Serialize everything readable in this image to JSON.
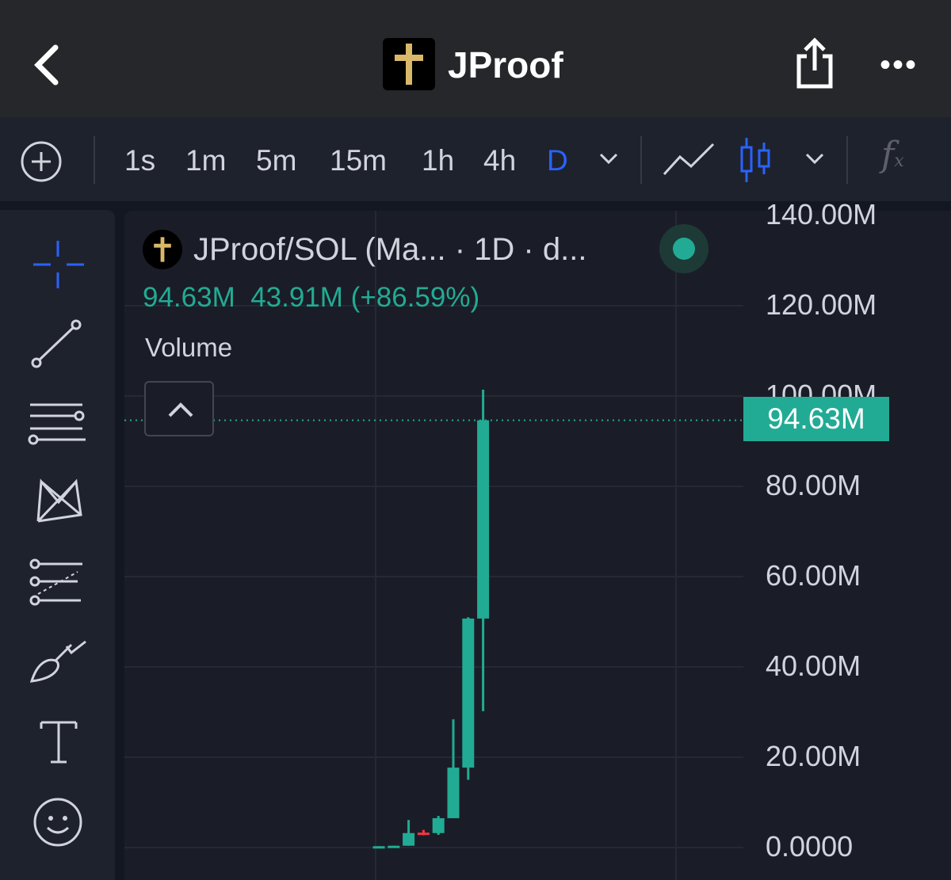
{
  "header": {
    "title": "JProof",
    "logo": "golden-cross-icon"
  },
  "toolbar": {
    "timeframes": [
      "1s",
      "1m",
      "5m",
      "15m",
      "1h",
      "4h",
      "D"
    ],
    "active": "D",
    "accent": "#2962ff"
  },
  "sidebar": {
    "tools": [
      "crosshair-icon",
      "trend-line-icon",
      "horizontal-lines-icon",
      "pattern-icon",
      "fib-icon",
      "brush-icon",
      "text-icon",
      "emoji-icon"
    ]
  },
  "legend": {
    "symbol": "JProof/SOL (Ma... · 1D · d...",
    "last": "94.63M",
    "change": "43.91M (+86.59%)",
    "indicator": "Volume"
  },
  "price_label": "94.63M",
  "colors": {
    "up": "#22ab94",
    "down": "#f23645"
  },
  "chart_data": {
    "type": "candlestick",
    "y_ticks": [
      "140.00M",
      "120.00M",
      "100.00M",
      "80.00M",
      "60.00M",
      "40.00M",
      "20.00M",
      "0.0000"
    ],
    "ylim": [
      0,
      140
    ],
    "unit": "M",
    "candles": [
      {
        "o": 0.2,
        "h": 0.3,
        "l": 0.1,
        "c": 0.3
      },
      {
        "o": 0.3,
        "h": 0.4,
        "l": 0.2,
        "c": 0.4
      },
      {
        "o": 0.4,
        "h": 6.1,
        "l": 0.4,
        "c": 3.2
      },
      {
        "o": 3.3,
        "h": 3.9,
        "l": 2.7,
        "c": 3.2
      },
      {
        "o": 3.2,
        "h": 7.0,
        "l": 2.8,
        "c": 6.5
      },
      {
        "o": 6.5,
        "h": 28.4,
        "l": 6.5,
        "c": 17.7
      },
      {
        "o": 17.7,
        "h": 51.0,
        "l": 15.0,
        "c": 50.72
      },
      {
        "o": 50.72,
        "h": 101.4,
        "l": 30.2,
        "c": 94.63
      }
    ]
  }
}
